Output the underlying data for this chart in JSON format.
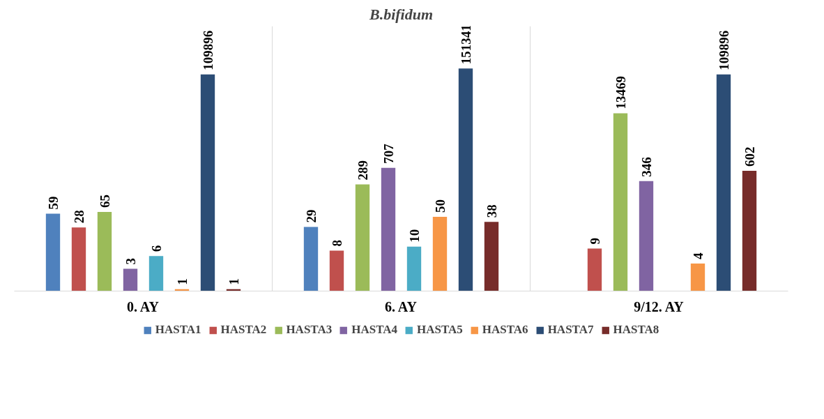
{
  "chart_data": {
    "type": "bar",
    "title": "B.bifidum",
    "log": true,
    "ylim": [
      0.9,
      1500000
    ],
    "tick_labels": "x",
    "grid": "x",
    "legend": "bottom",
    "data_labels": true,
    "categories": [
      "0. AY",
      "6. AY",
      "9/12. AY"
    ],
    "series": [
      {
        "name": "HASTA1",
        "color": "#4f81bd",
        "values": [
          59,
          29,
          null
        ]
      },
      {
        "name": "HASTA2",
        "color": "#c0504d",
        "values": [
          28,
          8,
          9
        ]
      },
      {
        "name": "HASTA3",
        "color": "#9bbb59",
        "values": [
          65,
          289,
          13469
        ]
      },
      {
        "name": "HASTA4",
        "color": "#8064a2",
        "values": [
          3,
          707,
          346
        ]
      },
      {
        "name": "HASTA5",
        "color": "#4bacc6",
        "values": [
          6,
          10,
          null
        ]
      },
      {
        "name": "HASTA6",
        "color": "#f79646",
        "values": [
          1,
          50,
          4
        ]
      },
      {
        "name": "HASTA7",
        "color": "#2c4d75",
        "values": [
          109896,
          151341,
          109896
        ]
      },
      {
        "name": "HASTA8",
        "color": "#772c2a",
        "values": [
          1,
          38,
          602
        ]
      }
    ]
  }
}
